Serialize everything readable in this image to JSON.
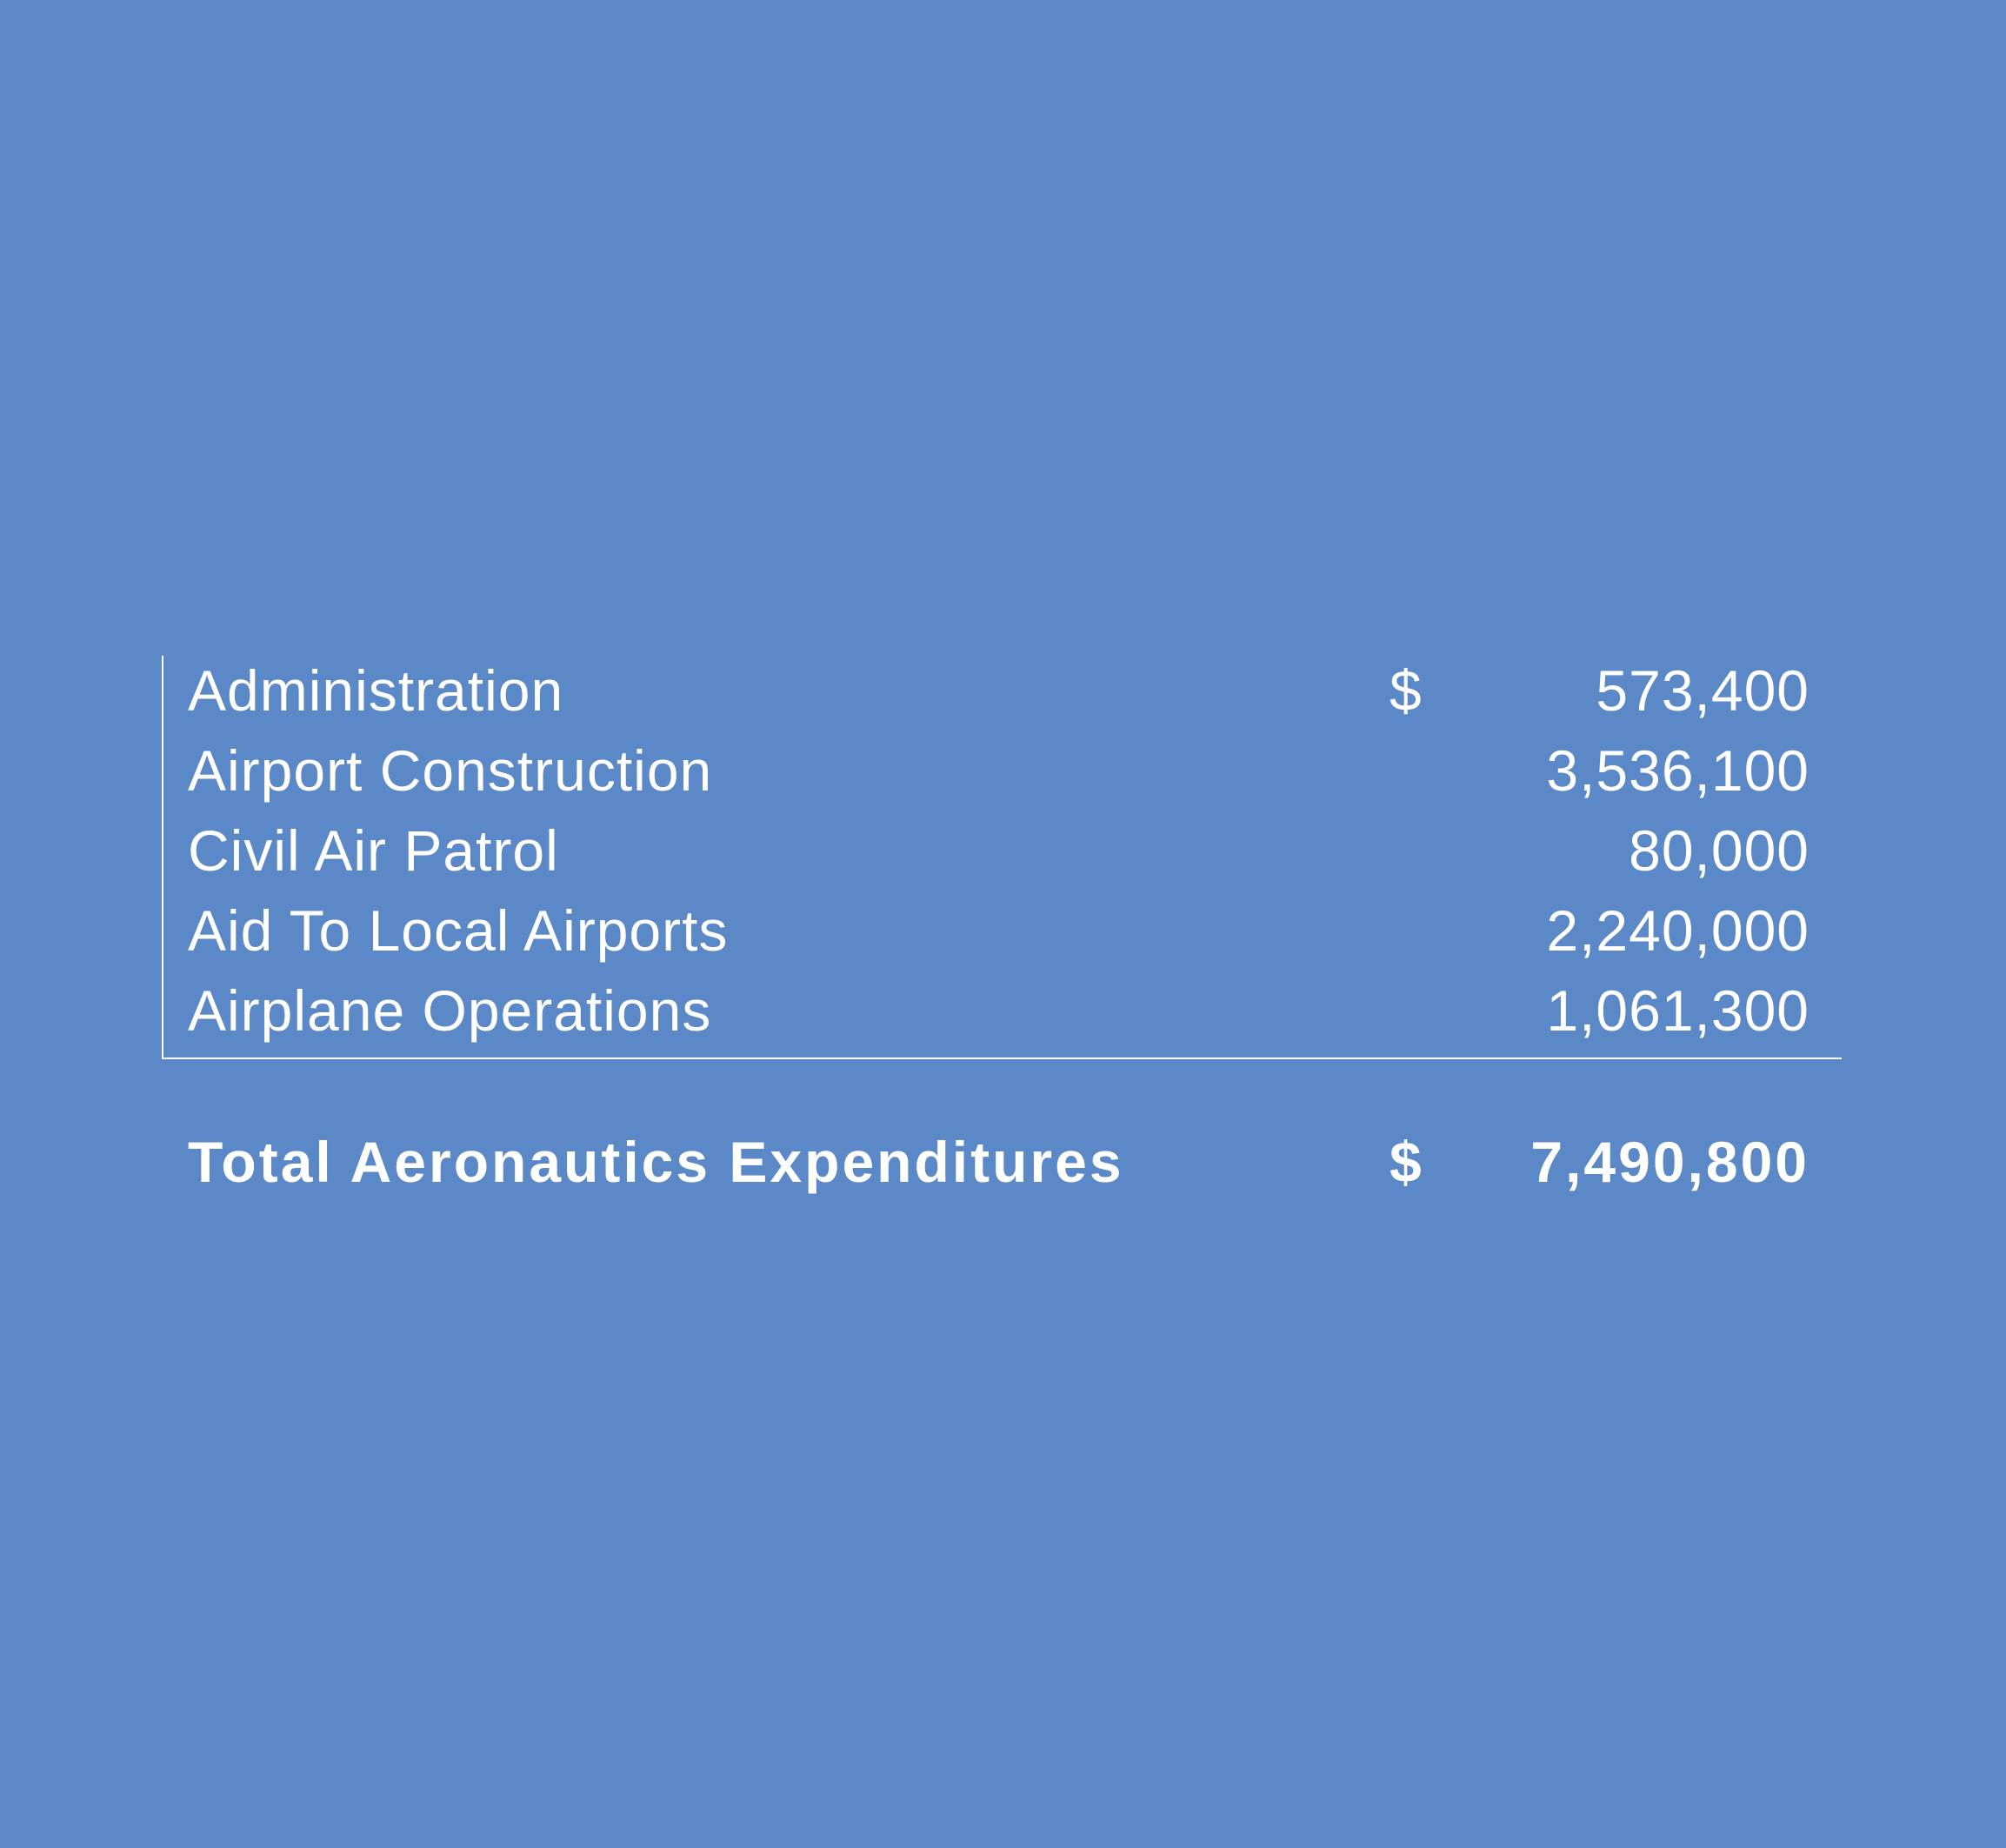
{
  "background_color": "#5b88c6",
  "text_color": "#ffffff",
  "expenditures": {
    "items": [
      {
        "label": "Administration",
        "currency": "$",
        "amount": "573,400"
      },
      {
        "label": "Airport Construction",
        "currency": "",
        "amount": "3,536,100"
      },
      {
        "label": "Civil Air Patrol",
        "currency": "",
        "amount": "80,000"
      },
      {
        "label": "Aid To Local Airports",
        "currency": "",
        "amount": "2,240,000"
      },
      {
        "label": "Airplane Operations",
        "currency": "",
        "amount": "1,061,300"
      }
    ],
    "total": {
      "label": "Total Aeronautics Expenditures",
      "currency": "$",
      "amount": "7,490,800"
    }
  }
}
